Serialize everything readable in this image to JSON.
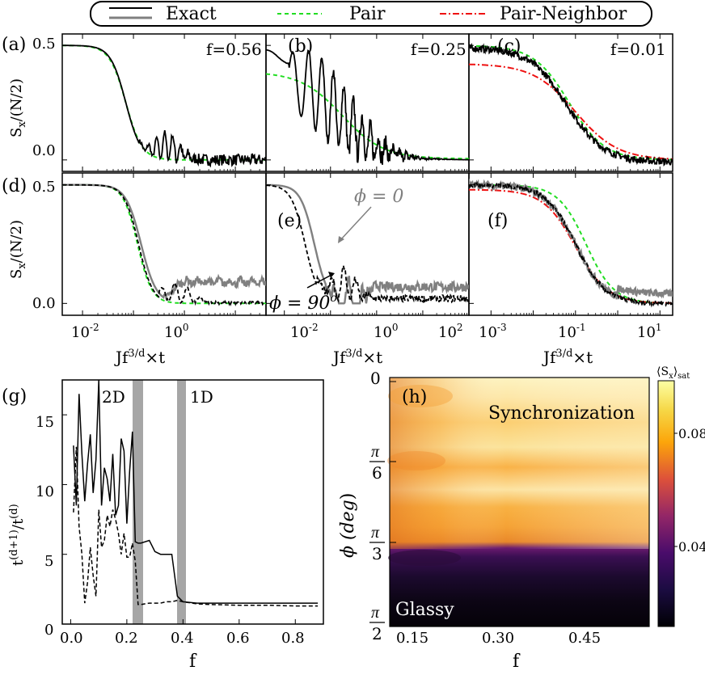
{
  "legend": {
    "entries": [
      {
        "label": "Exact",
        "color": "#000000",
        "color2": "#808080",
        "style": "solid"
      },
      {
        "label": "Pair",
        "color": "#22dd22",
        "style": "dashed"
      },
      {
        "label": "Pair-Neighbor",
        "color": "#ee1111",
        "style": "dashdot"
      }
    ]
  },
  "axis_labels": {
    "sx": "S",
    "sx_sub": "x",
    "sx_tail": "/(N/2)",
    "jf_base": "Jf",
    "jf_sup": "3/d",
    "jf_tail": "×t",
    "ratio_num_base": "t",
    "ratio_num_sup": "(d+1)",
    "ratio_den_base": "t",
    "ratio_den_sup": "(d)",
    "f": "f",
    "phi": "ϕ (deg",
    "phi_close": ")",
    "cb_base": "⟨S",
    "cb_sub": "x",
    "cb_tail": "⟩",
    "cb_sat": "sat"
  },
  "chart_data": [
    {
      "panel": "a",
      "label": "(a)",
      "annotation": "f=0.56",
      "type": "line",
      "x_scale": "log",
      "xlim": [
        0.004,
        40
      ],
      "ylim": [
        -0.05,
        0.55
      ],
      "y_ticks": [
        "0.5",
        "0.0"
      ],
      "series": [
        {
          "name": "Exact",
          "color": "#000000",
          "values_desc": "plateau 0.5, decay near 0.1, revival oscillations to 0.2 at t~0.3-0.7, noise to 0"
        },
        {
          "name": "Pair",
          "color": "#22dd22",
          "values_desc": "0.5 -> 0 by 0.15"
        }
      ]
    },
    {
      "panel": "b",
      "label": "(b)",
      "annotation": "f=0.25",
      "type": "line",
      "x_scale": "log",
      "xlim": [
        0.004,
        100
      ],
      "ylim": [
        -0.05,
        0.55
      ],
      "series": [
        {
          "name": "Exact",
          "color": "#000000"
        },
        {
          "name": "Pair",
          "color": "#22dd22"
        }
      ]
    },
    {
      "panel": "c",
      "label": "(c)",
      "annotation": "f=0.01",
      "type": "line",
      "x_scale": "log",
      "xlim": [
        0.0003,
        20
      ],
      "ylim": [
        -0.05,
        0.55
      ],
      "series": [
        {
          "name": "Exact",
          "color": "#000000"
        },
        {
          "name": "Pair",
          "color": "#22dd22"
        },
        {
          "name": "Pair-Neighbor",
          "color": "#ee1111"
        }
      ]
    },
    {
      "panel": "d",
      "label": "(d)",
      "type": "line",
      "x_scale": "log",
      "xlim": [
        0.004,
        40
      ],
      "ylim": [
        -0.05,
        0.55
      ],
      "x_ticks": [
        {
          "base": "10",
          "exp": "-2",
          "value": 0.01
        },
        {
          "base": "10",
          "exp": "0",
          "value": 1
        }
      ],
      "y_ticks": [
        "0.5",
        "0.0"
      ]
    },
    {
      "panel": "e",
      "label": "(e)",
      "type": "line",
      "x_scale": "log",
      "xlim": [
        0.004,
        100
      ],
      "ylim": [
        -0.05,
        0.55
      ],
      "x_ticks": [
        {
          "base": "10",
          "exp": "-2",
          "value": 0.01
        },
        {
          "base": "10",
          "exp": "0",
          "value": 1
        },
        {
          "base": "10",
          "exp": "2",
          "value": 100
        }
      ],
      "annotations": [
        {
          "text": "ϕ = 0",
          "color": "#808080"
        },
        {
          "text": "ϕ = 90",
          "sup": "o",
          "color": "#000000"
        }
      ]
    },
    {
      "panel": "f",
      "label": "(f)",
      "type": "line",
      "x_scale": "log",
      "xlim": [
        0.0003,
        20
      ],
      "ylim": [
        -0.05,
        0.55
      ],
      "x_ticks": [
        {
          "base": "10",
          "exp": "-3",
          "value": 0.001
        },
        {
          "base": "10",
          "exp": "-1",
          "value": 0.1
        },
        {
          "base": "10",
          "exp": "1",
          "value": 10
        }
      ]
    },
    {
      "panel": "g",
      "label": "(g)",
      "type": "line",
      "xlim": [
        -0.03,
        0.9
      ],
      "ylim": [
        0,
        17.5
      ],
      "x_ticks": [
        "0.0",
        "0.2",
        "0.4",
        "0.6",
        "0.8"
      ],
      "y_ticks": [
        "0",
        "5",
        "10",
        "15"
      ],
      "regions": [
        {
          "label": "2D",
          "x": [
            0.215,
            0.25
          ]
        },
        {
          "label": "1D",
          "x": [
            0.375,
            0.405
          ]
        }
      ],
      "series": [
        {
          "name": "solid",
          "style": "solid",
          "x": [
            0.01,
            0.02,
            0.03,
            0.04,
            0.05,
            0.06,
            0.07,
            0.08,
            0.09,
            0.1,
            0.11,
            0.12,
            0.13,
            0.14,
            0.15,
            0.16,
            0.17,
            0.18,
            0.19,
            0.2,
            0.21,
            0.22,
            0.23,
            0.24,
            0.25,
            0.28,
            0.3,
            0.32,
            0.34,
            0.36,
            0.38,
            0.4,
            0.45,
            0.5,
            0.6,
            0.7,
            0.8,
            0.88
          ],
          "y": [
            12.8,
            8.5,
            16.5,
            12.2,
            8.8,
            11.5,
            13.6,
            9.4,
            11.8,
            17.5,
            8.5,
            11.2,
            10.4,
            8.8,
            12.2,
            7.8,
            8.5,
            13.3,
            12.4,
            7.2,
            11.0,
            13.8,
            5.9,
            5.8,
            5.8,
            6.0,
            5.2,
            5.0,
            5.0,
            5.0,
            2.0,
            1.6,
            1.5,
            1.5,
            1.5,
            1.5,
            1.5,
            1.5
          ]
        },
        {
          "name": "dashed",
          "style": "dashed",
          "x": [
            0.01,
            0.02,
            0.03,
            0.04,
            0.05,
            0.06,
            0.07,
            0.08,
            0.09,
            0.1,
            0.11,
            0.12,
            0.13,
            0.14,
            0.15,
            0.16,
            0.17,
            0.18,
            0.19,
            0.2,
            0.21,
            0.22,
            0.23,
            0.24,
            0.25,
            0.28,
            0.3,
            0.32,
            0.34,
            0.36,
            0.38,
            0.4,
            0.45,
            0.5,
            0.6,
            0.7,
            0.8,
            0.88
          ],
          "y": [
            8.0,
            12.7,
            7.0,
            5.0,
            1.5,
            3.0,
            5.5,
            3.5,
            2.0,
            8.2,
            5.5,
            6.0,
            7.8,
            7.0,
            8.2,
            7.5,
            6.5,
            5.0,
            6.5,
            4.8,
            4.8,
            5.8,
            4.5,
            1.4,
            1.4,
            1.5,
            1.5,
            1.5,
            1.6,
            1.6,
            1.7,
            1.6,
            1.45,
            1.4,
            1.35,
            1.35,
            1.3,
            1.3
          ]
        }
      ]
    },
    {
      "panel": "h",
      "label": "(h)",
      "type": "heatmap",
      "xlim": [
        0.1,
        0.55
      ],
      "x_ticks": [
        "0.15",
        "0.30",
        "0.45"
      ],
      "y_ticks": [
        {
          "label": "0",
          "value_deg": 0
        },
        {
          "label_num": "π",
          "label_den": "6",
          "value_deg": 30
        },
        {
          "label_num": "π",
          "label_den": "3",
          "value_deg": 60
        },
        {
          "label_num": "π",
          "label_den": "2",
          "value_deg": 90
        }
      ],
      "regions": [
        "Synchronization",
        "Glassy"
      ],
      "colorbar": {
        "ticks": [
          "0.08",
          "0.04"
        ],
        "range": [
          0.005,
          0.095
        ],
        "colormap": "inferno"
      }
    }
  ]
}
